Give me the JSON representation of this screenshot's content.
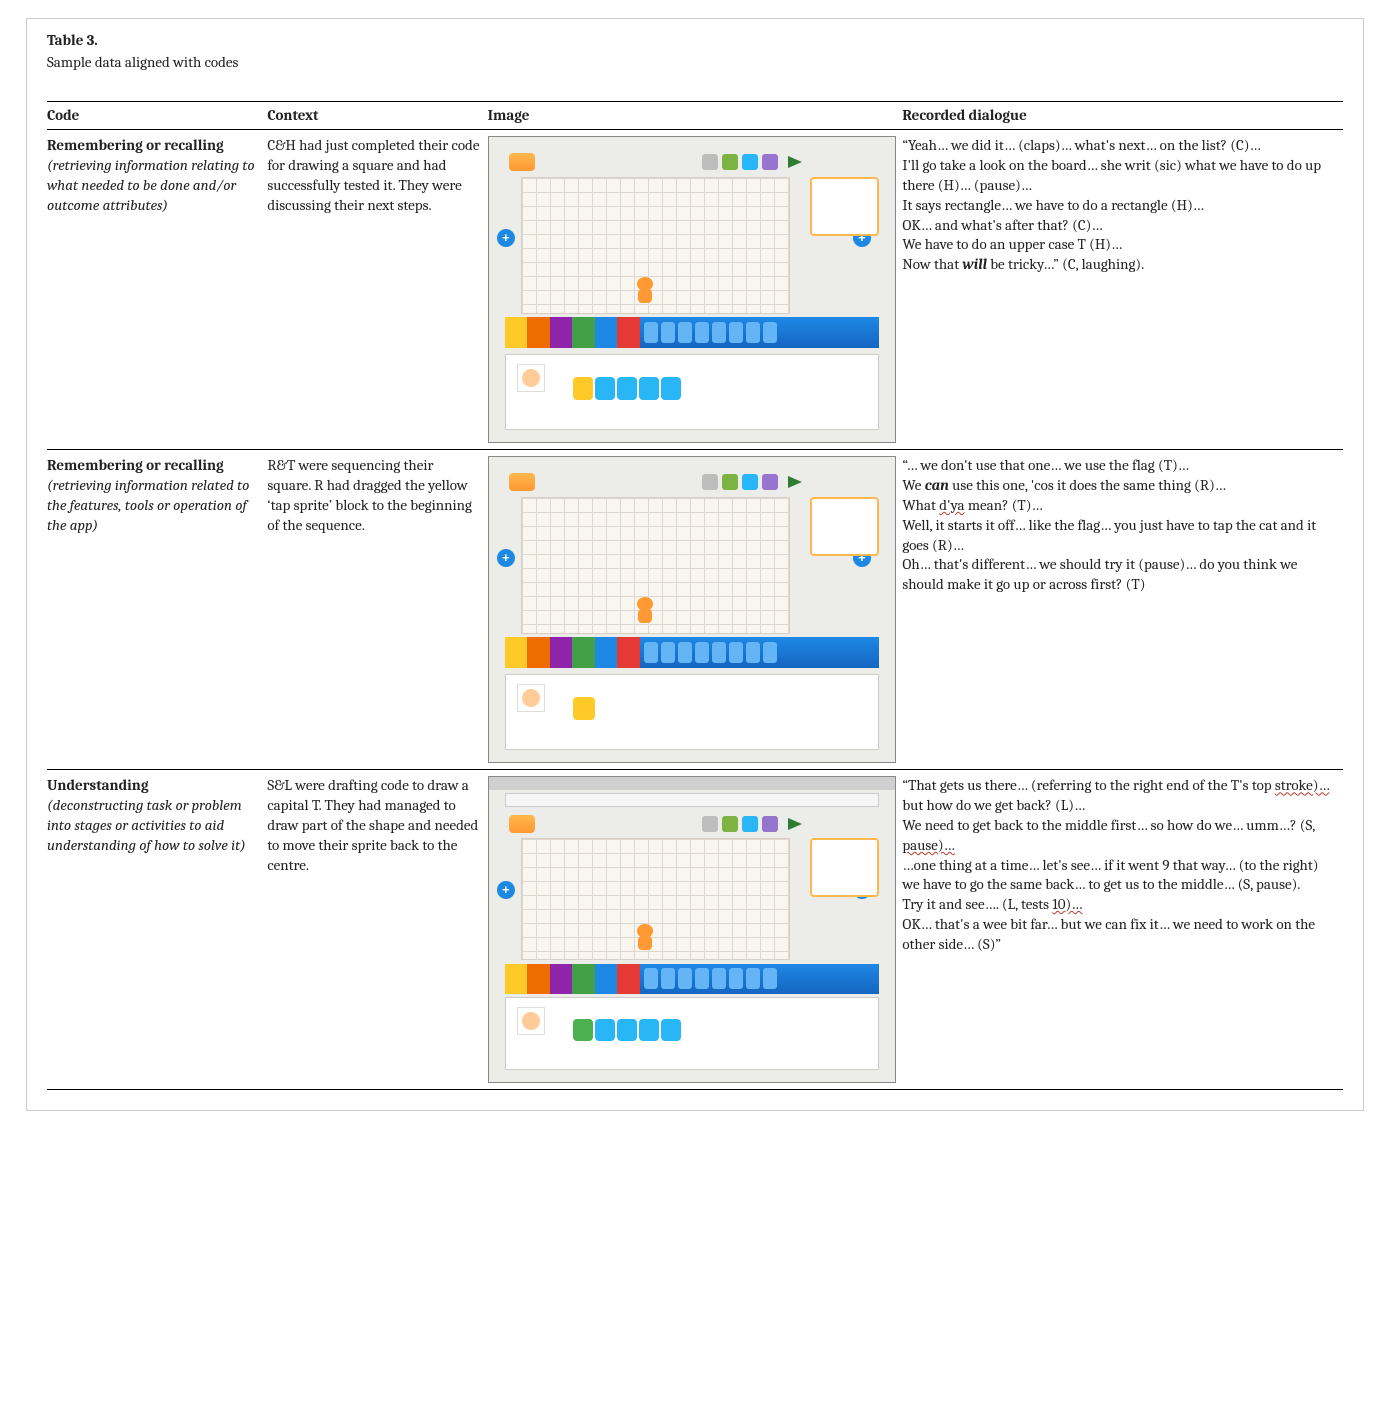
{
  "header": {
    "table_label": "Table 3.",
    "caption": "Sample data aligned with codes"
  },
  "columns": {
    "code": "Code",
    "context": "Context",
    "image": "Image",
    "dialogue": "Recorded dialogue"
  },
  "rows": [
    {
      "code_name": "Remembering or recalling",
      "code_desc": "(retrieving information relating to what needed to be done and/or outcome attributes)",
      "context": "C&H had just completed their code for drawing a square and had successfully tested it. They were discussing their next steps.",
      "image": {
        "variant": "row1",
        "script_blocks": [
          "y",
          "b",
          "b",
          "b",
          "b"
        ]
      },
      "dialogue_html": "“Yeah… we did it… (claps)… what's next… on the list? (C)…<br>I'll go take a look on the board… she writ (sic) what we have to do up there (H)… (pause)…<br>It says rectangle… we have to do a rectangle (H)…<br>OK… and what's after that? (C)…<br>We have to do an upper case T (H)…<br>Now that <b><i>will</i></b> be tricky…” (C, laughing)."
    },
    {
      "code_name": "Remembering or recalling",
      "code_desc": "(retrieving information related to the features, tools or operation of the app)",
      "context": "R&T were sequencing their square. R had dragged the yellow ‘tap sprite’ block to the beginning of the sequence.",
      "image": {
        "variant": "row2",
        "single_block": "y"
      },
      "dialogue_html": "“… we don't use that one… we use the flag (T)…<br>We <b><i>can</i></b> use this one, 'cos it does the same thing (R)…<br>What <span class=\"squiggle\">d'ya</span> mean? (T)…<br>Well, it starts it off… like the flag… you just have to tap the cat and it goes (R)…<br>Oh… that's different… we should try it (pause)… do you think we should make it go up or across first? (T)"
    },
    {
      "code_name": "Understanding",
      "code_desc": "(deconstructing task or problem into stages or activities to aid understanding of how to solve it)",
      "context": "S&L were drafting code to draw a capital T. They had managed to draw part of the shape and needed to move their sprite back to the centre.",
      "image": {
        "variant": "row3",
        "script_blocks": [
          "g",
          "b",
          "b",
          "b",
          "b"
        ]
      },
      "dialogue_html": "“That gets us there… (referring to the right end of the T's top <span class=\"squiggle\">stroke)…</span> but how do we get back? (L)…<br>We need to get back to the middle first… so how do we… umm…? (S, <span class=\"squiggle\">pause)…</span><br>…one thing at a time… let's see… if it went 9 that way… (to the right) we have to go the same back… to get us to the middle… (S, pause).<br>Try it and see…. (L, tests <span class=\"squiggle\">10)…</span><br>OK… that's a wee bit far… but we can fix it… we need to work on the other side… (S)”"
    }
  ],
  "layout": {
    "column_widths_pct": [
      17,
      17,
      32,
      34
    ],
    "row_border_color": "#000000",
    "font_family": "Cambria / Georgia serif",
    "base_font_size_pt": 11
  },
  "scratchjr_style": {
    "stage_bg": "#f9f6f0",
    "stage_grid": "#e0d8d0",
    "cat_color": "#ff9933",
    "home_gradient": [
      "#ffb84d",
      "#ff9933"
    ],
    "palette_colors": [
      "#ffca28",
      "#ef6c00",
      "#8e24aa",
      "#43a047",
      "#1e88e5",
      "#e53935"
    ],
    "blockstrip_gradient": [
      "#1e88e5",
      "#1565c0"
    ],
    "plus_button": "#1e88e5",
    "flag_color": "#2e7d32",
    "right_panel_border": "#ffb84d",
    "block_colors": {
      "y": "#ffca28",
      "b": "#29b6f6",
      "g": "#4caf50"
    }
  }
}
